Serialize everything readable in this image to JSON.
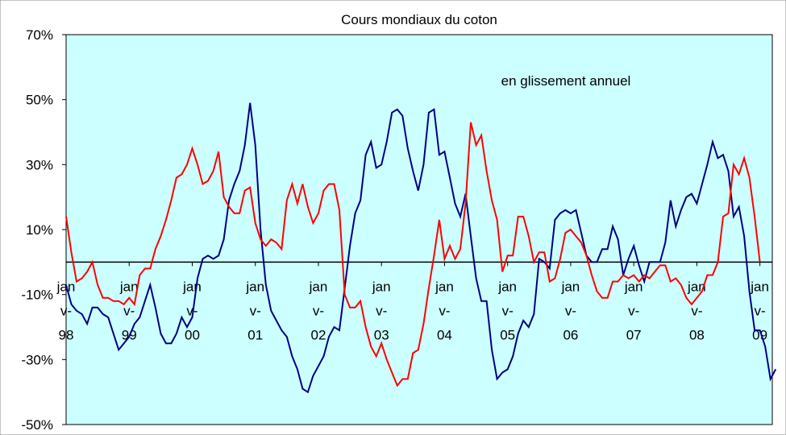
{
  "chart_data": {
    "type": "line",
    "title": "Cours mondiaux du coton",
    "annotation": "en glissement annuel",
    "categories": [
      "janv-98",
      null,
      null,
      null,
      null,
      null,
      null,
      null,
      null,
      null,
      null,
      null,
      "janv-99",
      null,
      null,
      null,
      null,
      null,
      null,
      null,
      null,
      null,
      null,
      null,
      "janv-00",
      null,
      null,
      null,
      null,
      null,
      null,
      null,
      null,
      null,
      null,
      null,
      "janv-01",
      null,
      null,
      null,
      null,
      null,
      null,
      null,
      null,
      null,
      null,
      null,
      "janv-02",
      null,
      null,
      null,
      null,
      null,
      null,
      null,
      null,
      null,
      null,
      null,
      "janv-03",
      null,
      null,
      null,
      null,
      null,
      null,
      null,
      null,
      null,
      null,
      null,
      "janv-04",
      null,
      null,
      null,
      null,
      null,
      null,
      null,
      null,
      null,
      null,
      null,
      "janv-05",
      null,
      null,
      null,
      null,
      null,
      null,
      null,
      null,
      null,
      null,
      null,
      "janv-06",
      null,
      null,
      null,
      null,
      null,
      null,
      null,
      null,
      null,
      null,
      null,
      "janv-07",
      null,
      null,
      null,
      null,
      null,
      null,
      null,
      null,
      null,
      null,
      null,
      "janv-08",
      null,
      null,
      null,
      null,
      null,
      null,
      null,
      null,
      null,
      null,
      null,
      "janv-09",
      null,
      null,
      null
    ],
    "series": [
      {
        "color": "#000080",
        "values": [
          -7,
          -13,
          -15,
          -16,
          -19,
          -14,
          -14,
          -16,
          -17,
          -22,
          -27,
          -25,
          -23,
          -19,
          -17,
          -12,
          -7,
          -14,
          -22,
          -25,
          -25,
          -22,
          -17,
          -20,
          -17,
          -5,
          1,
          2,
          1,
          2,
          7,
          19,
          24,
          28,
          36,
          49,
          36,
          10,
          -7,
          -15,
          -18,
          -21,
          -23,
          -29,
          -33,
          -39,
          -40,
          -35,
          -32,
          -29,
          -23,
          -20,
          -21,
          -8,
          5,
          15,
          19,
          33,
          37,
          29,
          30,
          37,
          46,
          47,
          45,
          35,
          28,
          22,
          30,
          46,
          47,
          33,
          34,
          26,
          18,
          14,
          21,
          8,
          -5,
          -12,
          -12,
          -27,
          -36,
          -34,
          -33,
          -29,
          -22,
          -18,
          -20,
          -16,
          1,
          0,
          -2,
          13,
          15,
          16,
          15,
          16,
          9,
          2,
          0,
          0,
          4,
          4,
          11,
          7,
          -4,
          1,
          5,
          -1,
          -6,
          0,
          0,
          0,
          6,
          19,
          11,
          16,
          20,
          21,
          18,
          24,
          30,
          37,
          32,
          33,
          28,
          14,
          17,
          8,
          -9,
          -21,
          -21,
          -26,
          -36,
          -33
        ]
      },
      {
        "color": "#ff0000",
        "values": [
          14,
          3,
          -6,
          -5,
          -3,
          0,
          -7,
          -11,
          -11,
          -12,
          -12,
          -13,
          -11,
          -13,
          -4,
          -2,
          -2,
          4,
          8,
          13,
          19,
          26,
          27,
          30,
          35,
          30,
          24,
          25,
          28,
          34,
          20,
          17,
          15,
          15,
          22,
          23,
          12,
          7,
          5,
          7,
          6,
          4,
          19,
          24,
          18,
          24,
          17,
          12,
          15,
          22,
          24,
          24,
          16,
          -10,
          -14,
          -14,
          -12,
          -20,
          -26,
          -29,
          -25,
          -30,
          -34,
          -38,
          -36,
          -36,
          -28,
          -27,
          -19,
          -8,
          2,
          13,
          1,
          5,
          1,
          4,
          18,
          43,
          36,
          39,
          28,
          19,
          13,
          -3,
          2,
          2,
          14,
          14,
          8,
          0,
          3,
          3,
          -6,
          -5,
          1,
          9,
          10,
          8,
          6,
          2,
          -4,
          -9,
          -11,
          -11,
          -6,
          -6,
          -4,
          -5,
          -4,
          -6,
          -4,
          -5,
          -3,
          -1,
          -1,
          -6,
          -5,
          -7,
          -11,
          -13,
          -11,
          -9,
          -4,
          -4,
          0,
          14,
          15,
          30,
          27,
          32,
          26,
          14,
          0,
          null,
          null,
          null
        ]
      }
    ],
    "ylim": [
      -50,
      70
    ],
    "yticks": [
      {
        "value": -50,
        "label": "-50%"
      },
      {
        "value": -30,
        "label": "-30%"
      },
      {
        "value": -10,
        "label": "-10%"
      },
      {
        "value": 10,
        "label": "10%"
      },
      {
        "value": 30,
        "label": "30%"
      },
      {
        "value": 50,
        "label": "50%"
      },
      {
        "value": 70,
        "label": "70%"
      }
    ],
    "background": "#ccffff"
  }
}
